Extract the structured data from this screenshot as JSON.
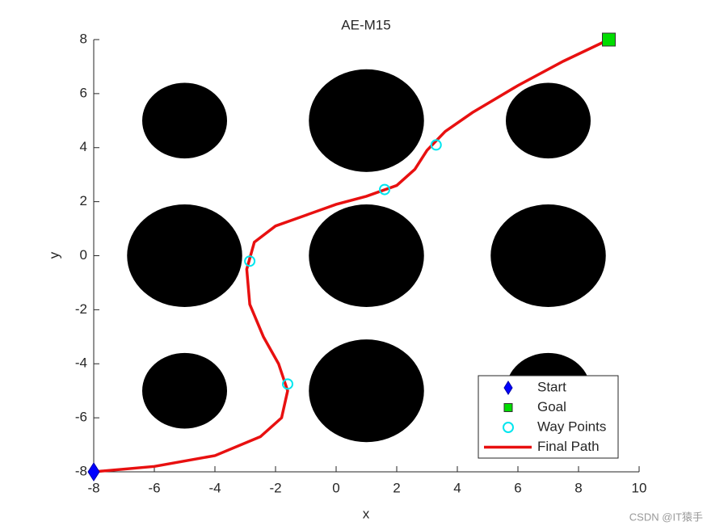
{
  "chart_data": {
    "type": "path",
    "title": "AE-M15",
    "xlabel": "x",
    "ylabel": "y",
    "xlim": [
      -8,
      10
    ],
    "xticks": [
      -8,
      -6,
      -4,
      -2,
      0,
      2,
      4,
      6,
      8,
      10
    ],
    "ylim": [
      -8,
      8
    ],
    "yticks": [
      -8,
      -6,
      -4,
      -2,
      0,
      2,
      4,
      6,
      8
    ],
    "legend": "southeast",
    "obstacles": {
      "color": "#000000",
      "x": [
        -5,
        1,
        7,
        -5,
        1,
        7,
        -5,
        1,
        7
      ],
      "y": [
        5,
        5,
        5,
        0,
        0,
        0,
        -5,
        -5,
        -5
      ],
      "r": [
        1.4,
        1.9,
        1.4,
        1.9,
        1.9,
        1.9,
        1.4,
        1.9,
        1.4
      ]
    },
    "series": [
      {
        "name": "Start",
        "color": "#0000ff",
        "marker": "diamond",
        "x": [
          -8
        ],
        "y": [
          -8
        ]
      },
      {
        "name": "Goal",
        "color": "#00dd00",
        "marker": "square",
        "x": [
          9
        ],
        "y": [
          8
        ]
      },
      {
        "name": "Way Points",
        "color": "#00e5ee",
        "marker": "circle",
        "x": [
          -2.85,
          -1.6,
          1.6,
          3.3
        ],
        "y": [
          -0.2,
          -4.75,
          2.45,
          4.1
        ]
      },
      {
        "name": "Final Path",
        "color": "#e81010",
        "marker": "line",
        "x": [
          -8,
          -6,
          -4,
          -2.5,
          -1.8,
          -1.6,
          -1.9,
          -2.4,
          -2.85,
          -2.95,
          -2.7,
          -2,
          -1,
          0,
          1,
          2,
          2.6,
          3,
          3.6,
          4.5,
          6,
          7.5,
          9
        ],
        "y": [
          -8,
          -7.8,
          -7.4,
          -6.7,
          -6,
          -5,
          -4,
          -3,
          -1.8,
          -0.5,
          0.5,
          1.1,
          1.5,
          1.9,
          2.2,
          2.6,
          3.2,
          3.9,
          4.6,
          5.3,
          6.3,
          7.2,
          8
        ]
      }
    ],
    "watermark": "CSDN @IT猿手"
  }
}
